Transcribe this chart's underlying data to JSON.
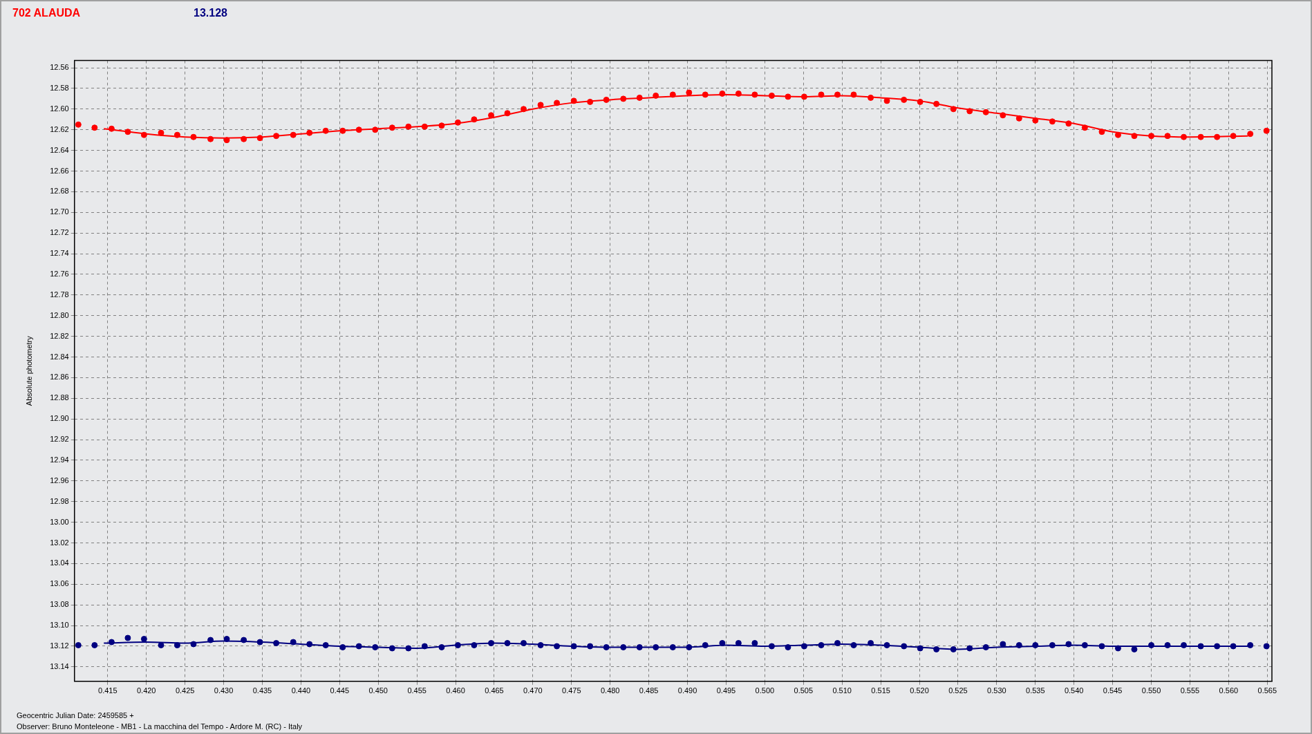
{
  "chart_data": {
    "type": "scatter",
    "title": "702 ALAUDA",
    "subtitle": "13.128",
    "ylabel": "Absolute photometry",
    "xlabel": "Geocentric Julian Date: 2459585 +",
    "annotations": [
      "Observer: Bruno Monteleone - MB1 - La macchina del Tempo - Ardore M. (RC) - Italy"
    ],
    "x": [
      0.4112,
      0.4133,
      0.4155,
      0.4176,
      0.4197,
      0.4219,
      0.424,
      0.4261,
      0.4283,
      0.4304,
      0.4326,
      0.4347,
      0.4368,
      0.439,
      0.4411,
      0.4432,
      0.4454,
      0.4475,
      0.4496,
      0.4518,
      0.4539,
      0.456,
      0.4582,
      0.4603,
      0.4624,
      0.4646,
      0.4667,
      0.4688,
      0.471,
      0.4731,
      0.4753,
      0.4774,
      0.4795,
      0.4817,
      0.4838,
      0.4859,
      0.4881,
      0.4902,
      0.4923,
      0.4945,
      0.4966,
      0.4987,
      0.5009,
      0.503,
      0.5051,
      0.5073,
      0.5094,
      0.5115,
      0.5137,
      0.5158,
      0.518,
      0.5201,
      0.5222,
      0.5244,
      0.5265,
      0.5286,
      0.5308,
      0.5329,
      0.535,
      0.5372,
      0.5393,
      0.5414,
      0.5436,
      0.5457,
      0.5478,
      0.55,
      0.5521,
      0.5542,
      0.5564,
      0.5585,
      0.5606,
      0.5628,
      0.5649
    ],
    "series": [
      {
        "color": "#ff0000",
        "marker": "circle",
        "values": [
          12.615,
          12.618,
          12.619,
          12.622,
          12.625,
          12.623,
          12.625,
          12.627,
          12.629,
          12.63,
          12.629,
          12.628,
          12.626,
          12.625,
          12.623,
          12.621,
          12.621,
          12.62,
          12.62,
          12.618,
          12.617,
          12.617,
          12.616,
          12.613,
          12.61,
          12.606,
          12.604,
          12.6,
          12.596,
          12.594,
          12.592,
          12.593,
          12.591,
          12.59,
          12.589,
          12.587,
          12.586,
          12.584,
          12.586,
          12.585,
          12.585,
          12.586,
          12.587,
          12.588,
          12.588,
          12.586,
          12.586,
          12.586,
          12.589,
          12.592,
          12.591,
          12.593,
          12.595,
          12.6,
          12.602,
          12.603,
          12.606,
          12.609,
          12.611,
          12.612,
          12.614,
          12.618,
          12.622,
          12.625,
          12.626,
          12.626,
          12.626,
          12.627,
          12.627,
          12.627,
          12.626,
          12.624,
          12.621
        ]
      },
      {
        "type": "line",
        "color": "#ff0000",
        "marker": "none",
        "x": [
          0.4145,
          0.42,
          0.425,
          0.43,
          0.435,
          0.44,
          0.445,
          0.45,
          0.455,
          0.46,
          0.465,
          0.47,
          0.475,
          0.48,
          0.485,
          0.49,
          0.495,
          0.5,
          0.505,
          0.51,
          0.515,
          0.52,
          0.525,
          0.53,
          0.535,
          0.54,
          0.545,
          0.55,
          0.555,
          0.5625
        ],
        "values": [
          12.619,
          12.624,
          12.627,
          12.628,
          12.627,
          12.624,
          12.621,
          12.619,
          12.617,
          12.614,
          12.608,
          12.6,
          12.594,
          12.591,
          12.589,
          12.587,
          12.586,
          12.587,
          12.588,
          12.587,
          12.589,
          12.592,
          12.599,
          12.604,
          12.609,
          12.614,
          12.622,
          12.626,
          12.627,
          12.626
        ]
      },
      {
        "color": "#000080",
        "marker": "circle",
        "values": [
          13.119,
          13.119,
          13.116,
          13.112,
          13.113,
          13.119,
          13.119,
          13.118,
          13.114,
          13.113,
          13.114,
          13.116,
          13.117,
          13.116,
          13.118,
          13.119,
          13.121,
          13.12,
          13.121,
          13.122,
          13.122,
          13.12,
          13.121,
          13.119,
          13.119,
          13.117,
          13.117,
          13.117,
          13.119,
          13.12,
          13.12,
          13.12,
          13.121,
          13.121,
          13.121,
          13.121,
          13.121,
          13.121,
          13.119,
          13.117,
          13.117,
          13.117,
          13.12,
          13.121,
          13.12,
          13.119,
          13.117,
          13.119,
          13.117,
          13.119,
          13.12,
          13.122,
          13.123,
          13.123,
          13.122,
          13.121,
          13.118,
          13.119,
          13.119,
          13.119,
          13.118,
          13.119,
          13.12,
          13.122,
          13.123,
          13.119,
          13.119,
          13.119,
          13.12,
          13.12,
          13.12,
          13.119,
          13.12
        ]
      },
      {
        "type": "line",
        "color": "#000080",
        "marker": "none",
        "x": [
          0.4145,
          0.42,
          0.425,
          0.43,
          0.435,
          0.44,
          0.445,
          0.45,
          0.455,
          0.46,
          0.465,
          0.47,
          0.475,
          0.48,
          0.49,
          0.495,
          0.5,
          0.505,
          0.51,
          0.515,
          0.52,
          0.525,
          0.53,
          0.535,
          0.54,
          0.545,
          0.5625
        ],
        "values": [
          13.117,
          13.116,
          13.117,
          13.115,
          13.116,
          13.118,
          13.12,
          13.121,
          13.122,
          13.119,
          13.117,
          13.118,
          13.12,
          13.121,
          13.121,
          13.119,
          13.12,
          13.119,
          13.118,
          13.119,
          13.121,
          13.123,
          13.121,
          13.12,
          13.119,
          13.12,
          13.12
        ]
      }
    ],
    "line_style": "solid",
    "grid": true,
    "legend": false,
    "xlim": [
      0.4107,
      0.5656
    ],
    "xticks": [
      {
        "value": 0.415,
        "label": "0.415"
      },
      {
        "value": 0.42,
        "label": "0.420"
      },
      {
        "value": 0.425,
        "label": "0.425"
      },
      {
        "value": 0.43,
        "label": "0.430"
      },
      {
        "value": 0.435,
        "label": "0.435"
      },
      {
        "value": 0.44,
        "label": "0.440"
      },
      {
        "value": 0.445,
        "label": "0.445"
      },
      {
        "value": 0.45,
        "label": "0.450"
      },
      {
        "value": 0.455,
        "label": "0.455"
      },
      {
        "value": 0.46,
        "label": "0.460"
      },
      {
        "value": 0.465,
        "label": "0.465"
      },
      {
        "value": 0.47,
        "label": "0.470"
      },
      {
        "value": 0.475,
        "label": "0.475"
      },
      {
        "value": 0.48,
        "label": "0.480"
      },
      {
        "value": 0.485,
        "label": "0.485"
      },
      {
        "value": 0.49,
        "label": "0.490"
      },
      {
        "value": 0.495,
        "label": "0.495"
      },
      {
        "value": 0.5,
        "label": "0.500"
      },
      {
        "value": 0.505,
        "label": "0.505"
      },
      {
        "value": 0.51,
        "label": "0.510"
      },
      {
        "value": 0.515,
        "label": "0.515"
      },
      {
        "value": 0.52,
        "label": "0.520"
      },
      {
        "value": 0.525,
        "label": "0.525"
      },
      {
        "value": 0.53,
        "label": "0.530"
      },
      {
        "value": 0.535,
        "label": "0.535"
      },
      {
        "value": 0.54,
        "label": "0.540"
      },
      {
        "value": 0.545,
        "label": "0.545"
      },
      {
        "value": 0.55,
        "label": "0.550"
      },
      {
        "value": 0.555,
        "label": "0.555"
      },
      {
        "value": 0.56,
        "label": "0.560"
      },
      {
        "value": 0.565,
        "label": "0.565"
      }
    ],
    "ylim": [
      13.154,
      12.553
    ],
    "yticks": [
      12.56,
      12.58,
      {
        "value": 12.6,
        "label": "12.60"
      },
      12.62,
      12.64,
      12.66,
      12.68,
      {
        "value": 12.7,
        "label": "12.70"
      },
      12.72,
      12.74,
      12.76,
      12.78,
      {
        "value": 12.8,
        "label": "12.80"
      },
      12.82,
      12.84,
      12.86,
      12.88,
      {
        "value": 12.9,
        "label": "12.90"
      },
      12.92,
      12.94,
      12.96,
      12.98,
      {
        "value": 13.0,
        "label": "13.00"
      },
      13.02,
      13.04,
      13.06,
      13.08,
      {
        "value": 13.1,
        "label": "13.10"
      },
      13.12,
      13.14
    ]
  }
}
